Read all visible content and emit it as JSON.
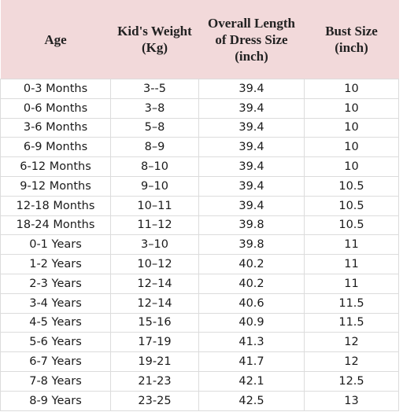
{
  "table": {
    "header": [
      "Age",
      "Kid's Weight (Kg)",
      "Overall Length of Dress Size (inch)",
      "Bust Size (inch)"
    ],
    "rows": [
      [
        "0-3 Months",
        "3--5",
        "39.4",
        "10"
      ],
      [
        "0-6 Months",
        "3–8",
        "39.4",
        "10"
      ],
      [
        "3-6 Months",
        "5–8",
        "39.4",
        "10"
      ],
      [
        "6-9 Months",
        "8–9",
        "39.4",
        "10"
      ],
      [
        "6-12 Months",
        "8–10",
        "39.4",
        "10"
      ],
      [
        "9-12 Months",
        "9–10",
        "39.4",
        "10.5"
      ],
      [
        "12-18 Months",
        "10–11",
        "39.4",
        "10.5"
      ],
      [
        "18-24 Months",
        "11–12",
        "39.8",
        "10.5"
      ],
      [
        "0-1 Years",
        "3–10",
        "39.8",
        "11"
      ],
      [
        "1-2 Years",
        "10–12",
        "40.2",
        "11"
      ],
      [
        "2-3 Years",
        "12–14",
        "40.2",
        "11"
      ],
      [
        "3-4 Years",
        "12–14",
        "40.6",
        "11.5"
      ],
      [
        "4-5 Years",
        "15-16",
        "40.9",
        "11.5"
      ],
      [
        "5-6 Years",
        "17-19",
        "41.3",
        "12"
      ],
      [
        "6-7 Years",
        "19-21",
        "41.7",
        "12"
      ],
      [
        "7-8 Years",
        "21-23",
        "42.1",
        "12.5"
      ],
      [
        "8-9 Years",
        "23-25",
        "42.5",
        "13"
      ]
    ]
  }
}
